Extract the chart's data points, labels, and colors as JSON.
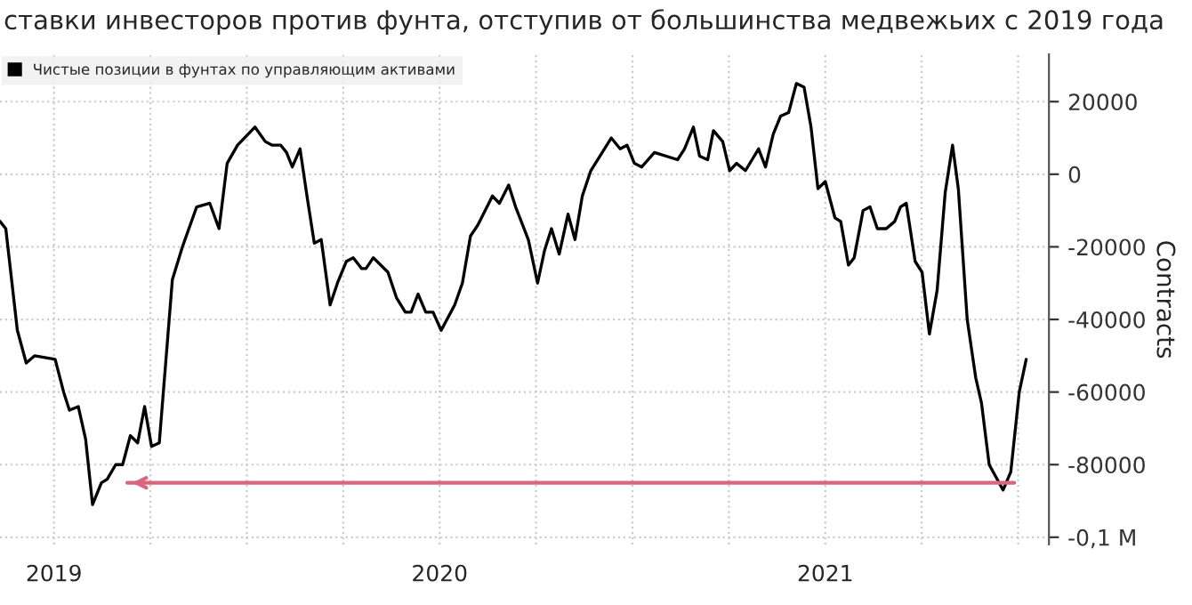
{
  "chart_data": {
    "type": "line",
    "title": "ставки инвесторов против фунта, отступив от большинства медвежьих с 2019 года",
    "ylabel": "Contracts",
    "xlim": [
      2018.86,
      2021.58
    ],
    "xticks": [
      {
        "value": 2019,
        "label": "2019"
      },
      {
        "value": 2019.25,
        "label": null
      },
      {
        "value": 2019.5,
        "label": null
      },
      {
        "value": 2019.75,
        "label": null
      },
      {
        "value": 2020,
        "label": "2020"
      },
      {
        "value": 2020.25,
        "label": null
      },
      {
        "value": 2020.5,
        "label": null
      },
      {
        "value": 2020.75,
        "label": null
      },
      {
        "value": 2021,
        "label": "2021"
      },
      {
        "value": 2021.25,
        "label": null
      },
      {
        "value": 2021.5,
        "label": null
      }
    ],
    "ylim": [
      -102000,
      33000
    ],
    "yticks": [
      {
        "value": -100000,
        "label": "-0,1 M"
      },
      -80000,
      -60000,
      -40000,
      -20000,
      0,
      20000
    ],
    "grid": true,
    "legend": "top left",
    "series": [
      {
        "name": "Чистые позиции в фунтах по управляющим активами",
        "color": "#000000",
        "x": [
          2018.86,
          2018.875,
          2018.905,
          2018.928,
          2018.95,
          2019.003,
          2019.025,
          2019.04,
          2019.063,
          2019.082,
          2019.1,
          2019.123,
          2019.138,
          2019.16,
          2019.178,
          2019.198,
          2019.217,
          2019.235,
          2019.253,
          2019.273,
          2019.307,
          2019.333,
          2019.37,
          2019.404,
          2019.428,
          2019.449,
          2019.476,
          2019.521,
          2019.548,
          2019.566,
          2019.588,
          2019.603,
          2019.618,
          2019.638,
          2019.656,
          2019.675,
          2019.693,
          2019.716,
          2019.735,
          2019.758,
          2019.776,
          2019.798,
          2019.809,
          2019.828,
          2019.866,
          2019.888,
          2019.911,
          2019.926,
          2019.944,
          2019.964,
          2019.983,
          2020.004,
          2020.039,
          2020.059,
          2020.08,
          2020.099,
          2020.137,
          2020.155,
          2020.179,
          2020.197,
          2020.23,
          2020.254,
          2020.272,
          2020.29,
          2020.31,
          2020.333,
          2020.351,
          2020.37,
          2020.392,
          2020.445,
          2020.468,
          2020.486,
          2020.505,
          2020.524,
          2020.557,
          2020.617,
          2020.635,
          2020.658,
          2020.674,
          2020.695,
          2020.71,
          2020.734,
          2020.752,
          2020.77,
          2020.793,
          2020.827,
          2020.845,
          2020.865,
          2020.884,
          2020.905,
          2020.925,
          2020.945,
          2020.963,
          2020.981,
          2021.0,
          2021.025,
          2021.04,
          2021.06,
          2021.075,
          2021.098,
          2021.116,
          2021.135,
          2021.158,
          2021.18,
          2021.195,
          2021.21,
          2021.233,
          2021.251,
          2021.27,
          2021.29,
          2021.311,
          2021.33,
          2021.345,
          2021.368,
          2021.39,
          2021.405,
          2021.425,
          2021.461,
          2021.481,
          2021.503,
          2021.521
        ],
        "values": [
          -13000,
          -15000,
          -43000,
          -52000,
          -50000,
          -51000,
          -60000,
          -65000,
          -64000,
          -73000,
          -91000,
          -85000,
          -84000,
          -80000,
          -80000,
          -72000,
          -74000,
          -64000,
          -75000,
          -74000,
          -29000,
          -20000,
          -9000,
          -8000,
          -15000,
          3000,
          8000,
          13000,
          9000,
          8000,
          8000,
          6000,
          2000,
          7000,
          -6000,
          -19000,
          -18000,
          -36000,
          -30000,
          -24000,
          -23000,
          -26000,
          -26000,
          -23000,
          -27000,
          -34000,
          -38000,
          -38000,
          -33000,
          -38000,
          -38000,
          -43000,
          -36000,
          -30000,
          -17000,
          -14000,
          -6000,
          -8000,
          -3000,
          -9000,
          -18000,
          -30000,
          -21000,
          -15000,
          -22000,
          -11000,
          -18000,
          -6000,
          1000,
          10000,
          7000,
          8000,
          3000,
          2000,
          6000,
          4000,
          7000,
          13000,
          5000,
          4000,
          12000,
          9000,
          1000,
          3000,
          1000,
          7000,
          2000,
          11000,
          16000,
          17000,
          25000,
          24000,
          13000,
          -4000,
          -2000,
          -12000,
          -13000,
          -25000,
          -23000,
          -10000,
          -9000,
          -15000,
          -15000,
          -13000,
          -9000,
          -8000,
          -24000,
          -27000,
          -44000,
          -32000,
          -5000,
          8000,
          -4000,
          -40000,
          -56000,
          -63000,
          -80000,
          -87000,
          -82000,
          -60000,
          -51000
        ]
      },
      {
        "type": "line",
        "color": "#d9667a",
        "x": [
          2021.49,
          2019.19
        ],
        "values": [
          -85000,
          -85000
        ]
      }
    ]
  }
}
